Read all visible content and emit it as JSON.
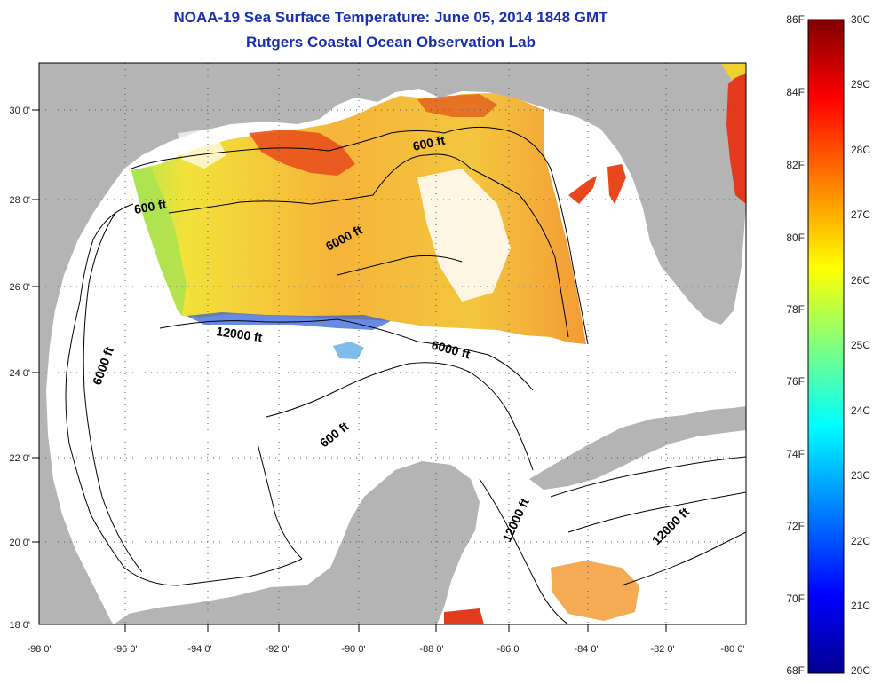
{
  "title": "NOAA-19 Sea Surface Temperature:  June 05, 2014 1848 GMT",
  "subtitle": "Rutgers Coastal Ocean Observation Lab",
  "map": {
    "lon_ticks": [
      "-98 0'",
      "-96 0'",
      "-94 0'",
      "-92 0'",
      "-90 0'",
      "-88 0'",
      "-86 0'",
      "-84 0'",
      "-82 0'",
      "-80 0'"
    ],
    "lat_ticks": [
      "30 0'",
      "28 0'",
      "26 0'",
      "24 0'",
      "22 0'",
      "20 0'",
      "18 0'"
    ],
    "contour_labels": [
      "600 ft",
      "600 ft",
      "6000 ft",
      "6000 ft",
      "6000 ft",
      "12000 ft",
      "600 ft",
      "12000 ft",
      "12000 ft"
    ],
    "colors": {
      "land": "#b4b4b4",
      "ocean": "#ffffff",
      "contour": "#000000"
    }
  },
  "colorbar": {
    "fahrenheit_labels": [
      "86F",
      "84F",
      "82F",
      "80F",
      "78F",
      "76F",
      "74F",
      "72F",
      "70F",
      "68F"
    ],
    "celsius_labels": [
      "30C",
      "29C",
      "28C",
      "27C",
      "26C",
      "25C",
      "24C",
      "23C",
      "22C",
      "21C",
      "20C"
    ],
    "min_c": 20,
    "max_c": 30,
    "colormap": [
      "#00008f",
      "#0000ff",
      "#0080ff",
      "#00ffff",
      "#80ff80",
      "#ffff00",
      "#ff8000",
      "#ff0000",
      "#800000"
    ]
  }
}
